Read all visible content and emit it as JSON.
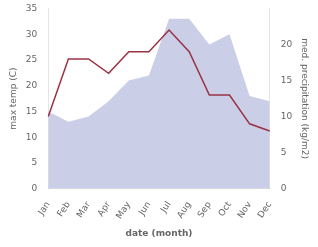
{
  "chart_data": {
    "type": "line",
    "xlabel": "date (month)",
    "ylabel": "max temp (C)",
    "y2label": "med. precipitation (kg/m2)",
    "categories": [
      "Jan",
      "Feb",
      "Mar",
      "Apr",
      "May",
      "Jun",
      "Jul",
      "Aug",
      "Sep",
      "Oct",
      "Nov",
      "Dec"
    ],
    "series": [
      {
        "type": "area",
        "color": "#b8bede",
        "values": [
          15,
          13,
          14,
          17,
          21,
          22,
          33,
          33,
          28,
          30,
          18,
          17
        ]
      },
      {
        "type": "line",
        "color": "#993344",
        "axis": "y2",
        "values": [
          10,
          18,
          18,
          16,
          19,
          19,
          22,
          19,
          13,
          13,
          9,
          8
        ]
      }
    ],
    "ylim": [
      0,
      35
    ],
    "yticks": [
      0,
      5,
      10,
      15,
      20,
      25,
      30,
      35
    ],
    "y2lim": [
      0,
      25
    ],
    "y2ticks": [
      0,
      5,
      10,
      15,
      20
    ],
    "grid": false,
    "legend": false
  }
}
